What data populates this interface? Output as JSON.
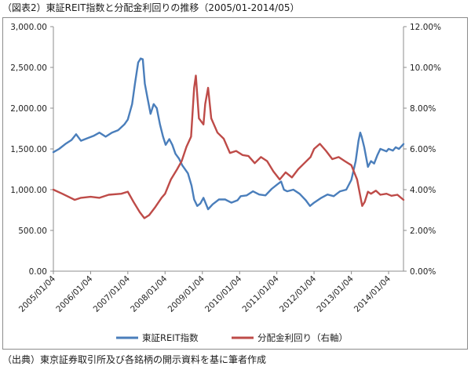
{
  "figure": {
    "title": "（図表2）東証REIT指数と分配金利回りの推移（2005/01-2014/05）",
    "source": "（出典）東京証券取引所及び各銘柄の開示資料を基に筆者作成"
  },
  "chart_data": {
    "type": "line",
    "title": "",
    "xlabel": "",
    "ylabel": "",
    "x_ticks": [
      "2005/01/04",
      "2006/01/04",
      "2007/01/04",
      "2008/01/04",
      "2009/01/04",
      "2010/01/04",
      "2011/01/04",
      "2012/01/04",
      "2013/01/04",
      "2014/01/04"
    ],
    "xlim": [
      "2005-01-04",
      "2014-05-30"
    ],
    "ylim_left": [
      0,
      3000
    ],
    "ylim_right": [
      0,
      12
    ],
    "y_ticks_left": [
      "0.00",
      "500.00",
      "1,000.00",
      "1,500.00",
      "2,000.00",
      "2,500.00",
      "3,000.00"
    ],
    "y_ticks_right": [
      "0.00%",
      "2.00%",
      "4.00%",
      "6.00%",
      "8.00%",
      "10.00%",
      "12.00%"
    ],
    "grid": false,
    "legend_position": "bottom",
    "series": [
      {
        "name": "東証REIT指数",
        "axis": "left",
        "color": "#4a7ebb",
        "points": [
          [
            "2005-01-04",
            1460
          ],
          [
            "2005-03-01",
            1500
          ],
          [
            "2005-05-01",
            1560
          ],
          [
            "2005-07-01",
            1610
          ],
          [
            "2005-08-15",
            1680
          ],
          [
            "2005-10-01",
            1600
          ],
          [
            "2005-12-01",
            1630
          ],
          [
            "2006-02-01",
            1660
          ],
          [
            "2006-04-01",
            1700
          ],
          [
            "2006-06-01",
            1650
          ],
          [
            "2006-08-01",
            1700
          ],
          [
            "2006-10-01",
            1730
          ],
          [
            "2006-12-01",
            1800
          ],
          [
            "2007-01-04",
            1860
          ],
          [
            "2007-02-15",
            2050
          ],
          [
            "2007-03-15",
            2300
          ],
          [
            "2007-04-15",
            2560
          ],
          [
            "2007-05-10",
            2610
          ],
          [
            "2007-05-31",
            2600
          ],
          [
            "2007-06-20",
            2300
          ],
          [
            "2007-07-15",
            2130
          ],
          [
            "2007-08-15",
            1930
          ],
          [
            "2007-09-15",
            2050
          ],
          [
            "2007-10-15",
            2000
          ],
          [
            "2007-11-15",
            1800
          ],
          [
            "2007-12-15",
            1650
          ],
          [
            "2008-01-10",
            1550
          ],
          [
            "2008-02-15",
            1620
          ],
          [
            "2008-03-15",
            1550
          ],
          [
            "2008-04-15",
            1440
          ],
          [
            "2008-05-20",
            1380
          ],
          [
            "2008-06-20",
            1300
          ],
          [
            "2008-08-15",
            1200
          ],
          [
            "2008-09-20",
            1050
          ],
          [
            "2008-10-15",
            880
          ],
          [
            "2008-11-15",
            800
          ],
          [
            "2008-12-15",
            830
          ],
          [
            "2009-01-15",
            900
          ],
          [
            "2009-03-01",
            760
          ],
          [
            "2009-04-15",
            820
          ],
          [
            "2009-06-15",
            880
          ],
          [
            "2009-08-15",
            880
          ],
          [
            "2009-10-15",
            840
          ],
          [
            "2009-12-15",
            870
          ],
          [
            "2010-01-15",
            920
          ],
          [
            "2010-03-15",
            930
          ],
          [
            "2010-05-15",
            980
          ],
          [
            "2010-07-15",
            940
          ],
          [
            "2010-09-15",
            930
          ],
          [
            "2010-11-15",
            1010
          ],
          [
            "2011-01-04",
            1060
          ],
          [
            "2011-02-15",
            1100
          ],
          [
            "2011-03-15",
            1000
          ],
          [
            "2011-04-15",
            980
          ],
          [
            "2011-06-15",
            1000
          ],
          [
            "2011-08-15",
            950
          ],
          [
            "2011-10-15",
            870
          ],
          [
            "2011-11-25",
            800
          ],
          [
            "2012-01-04",
            840
          ],
          [
            "2012-03-15",
            900
          ],
          [
            "2012-05-15",
            940
          ],
          [
            "2012-07-15",
            920
          ],
          [
            "2012-09-15",
            980
          ],
          [
            "2012-11-15",
            1000
          ],
          [
            "2013-01-04",
            1120
          ],
          [
            "2013-02-15",
            1350
          ],
          [
            "2013-03-15",
            1600
          ],
          [
            "2013-04-01",
            1700
          ],
          [
            "2013-04-15",
            1650
          ],
          [
            "2013-05-10",
            1520
          ],
          [
            "2013-06-15",
            1280
          ],
          [
            "2013-07-15",
            1350
          ],
          [
            "2013-08-15",
            1320
          ],
          [
            "2013-09-15",
            1420
          ],
          [
            "2013-10-15",
            1500
          ],
          [
            "2013-12-15",
            1470
          ],
          [
            "2014-01-04",
            1500
          ],
          [
            "2014-02-15",
            1480
          ],
          [
            "2014-03-15",
            1520
          ],
          [
            "2014-04-15",
            1500
          ],
          [
            "2014-05-30",
            1560
          ]
        ]
      },
      {
        "name": "分配金利回り（右軸）",
        "axis": "right",
        "color": "#be4b48",
        "points": [
          [
            "2005-01-04",
            4.0
          ],
          [
            "2005-04-01",
            3.8
          ],
          [
            "2005-08-01",
            3.5
          ],
          [
            "2005-10-01",
            3.6
          ],
          [
            "2006-01-04",
            3.65
          ],
          [
            "2006-04-01",
            3.6
          ],
          [
            "2006-07-01",
            3.75
          ],
          [
            "2006-11-01",
            3.8
          ],
          [
            "2007-01-04",
            3.9
          ],
          [
            "2007-03-01",
            3.4
          ],
          [
            "2007-05-01",
            2.9
          ],
          [
            "2007-06-15",
            2.6
          ],
          [
            "2007-08-01",
            2.75
          ],
          [
            "2007-10-01",
            3.15
          ],
          [
            "2007-12-01",
            3.6
          ],
          [
            "2008-01-04",
            3.8
          ],
          [
            "2008-03-01",
            4.5
          ],
          [
            "2008-05-01",
            5.0
          ],
          [
            "2008-06-15",
            5.4
          ],
          [
            "2008-08-01",
            6.1
          ],
          [
            "2008-09-15",
            6.6
          ],
          [
            "2008-10-15",
            9.0
          ],
          [
            "2008-11-01",
            9.6
          ],
          [
            "2008-12-01",
            7.5
          ],
          [
            "2009-01-15",
            7.2
          ],
          [
            "2009-02-01",
            8.2
          ],
          [
            "2009-03-01",
            9.0
          ],
          [
            "2009-04-01",
            7.5
          ],
          [
            "2009-06-01",
            6.8
          ],
          [
            "2009-08-01",
            6.5
          ],
          [
            "2009-10-01",
            5.8
          ],
          [
            "2009-12-01",
            5.9
          ],
          [
            "2010-02-01",
            5.7
          ],
          [
            "2010-04-01",
            5.65
          ],
          [
            "2010-06-01",
            5.3
          ],
          [
            "2010-08-01",
            5.6
          ],
          [
            "2010-10-01",
            5.4
          ],
          [
            "2010-12-01",
            4.9
          ],
          [
            "2011-02-01",
            4.5
          ],
          [
            "2011-04-01",
            4.85
          ],
          [
            "2011-06-01",
            4.6
          ],
          [
            "2011-08-01",
            5.0
          ],
          [
            "2011-10-01",
            5.3
          ],
          [
            "2011-12-01",
            5.6
          ],
          [
            "2012-01-04",
            6.0
          ],
          [
            "2012-03-01",
            6.25
          ],
          [
            "2012-05-01",
            5.9
          ],
          [
            "2012-07-01",
            5.5
          ],
          [
            "2012-09-01",
            5.6
          ],
          [
            "2012-11-01",
            5.4
          ],
          [
            "2013-01-04",
            5.2
          ],
          [
            "2013-03-01",
            4.5
          ],
          [
            "2013-04-01",
            3.7
          ],
          [
            "2013-04-20",
            3.2
          ],
          [
            "2013-05-15",
            3.4
          ],
          [
            "2013-06-15",
            3.9
          ],
          [
            "2013-07-15",
            3.8
          ],
          [
            "2013-09-01",
            3.95
          ],
          [
            "2013-10-15",
            3.75
          ],
          [
            "2013-12-15",
            3.8
          ],
          [
            "2014-02-01",
            3.7
          ],
          [
            "2014-04-01",
            3.75
          ],
          [
            "2014-05-30",
            3.5
          ]
        ]
      }
    ]
  }
}
